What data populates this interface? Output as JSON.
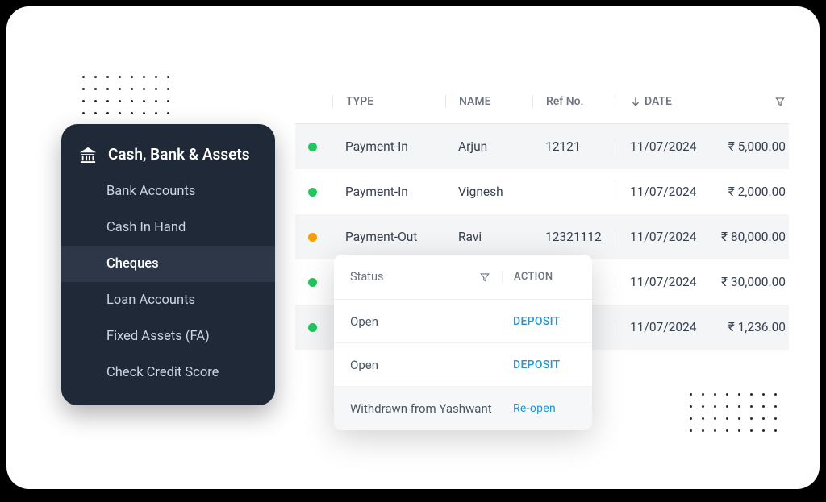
{
  "sidebar": {
    "title": "Cash, Bank & Assets",
    "items": [
      {
        "label": "Bank Accounts",
        "active": false
      },
      {
        "label": "Cash In Hand",
        "active": false
      },
      {
        "label": "Cheques",
        "active": true
      },
      {
        "label": "Loan Accounts",
        "active": false
      },
      {
        "label": "Fixed Assets (FA)",
        "active": false
      },
      {
        "label": "Check Credit Score",
        "active": false
      }
    ]
  },
  "table": {
    "headers": {
      "type": "TYPE",
      "name": "NAME",
      "ref": "Ref No.",
      "date": "DATE"
    },
    "rows": [
      {
        "status_color": "green",
        "type": "Payment-In",
        "name": "Arjun",
        "ref": "12121",
        "date": "11/07/2024",
        "amount": "₹ 5,000.00",
        "alt": true
      },
      {
        "status_color": "green",
        "type": "Payment-In",
        "name": "Vignesh",
        "ref": "",
        "date": "11/07/2024",
        "amount": "₹ 2,000.00",
        "alt": false
      },
      {
        "status_color": "orange",
        "type": "Payment-Out",
        "name": "Ravi",
        "ref": "12321112",
        "date": "11/07/2024",
        "amount": "₹ 80,000.00",
        "alt": true
      },
      {
        "status_color": "green",
        "type": "",
        "name": "",
        "ref": "",
        "date": "11/07/2024",
        "amount": "₹ 30,000.00",
        "alt": false
      },
      {
        "status_color": "green",
        "type": "",
        "name": "",
        "ref": "",
        "date": "11/07/2024",
        "amount": "₹ 1,236.00",
        "alt": true
      }
    ]
  },
  "popup": {
    "headers": {
      "status": "Status",
      "action": "ACTION"
    },
    "rows": [
      {
        "status": "Open",
        "action": "DEPOSIT",
        "action_class": ""
      },
      {
        "status": "Open",
        "action": "DEPOSIT",
        "action_class": ""
      },
      {
        "status": "Withdrawn from Yashwant",
        "action": "Re-open",
        "action_class": "reopen"
      }
    ]
  },
  "colors": {
    "sidebar_bg": "#1f2937",
    "sidebar_active": "#2d3748",
    "text_muted": "#6b7280",
    "text_body": "#374151",
    "link": "#2596d1",
    "green": "#22c55e",
    "orange": "#f59e0b"
  }
}
